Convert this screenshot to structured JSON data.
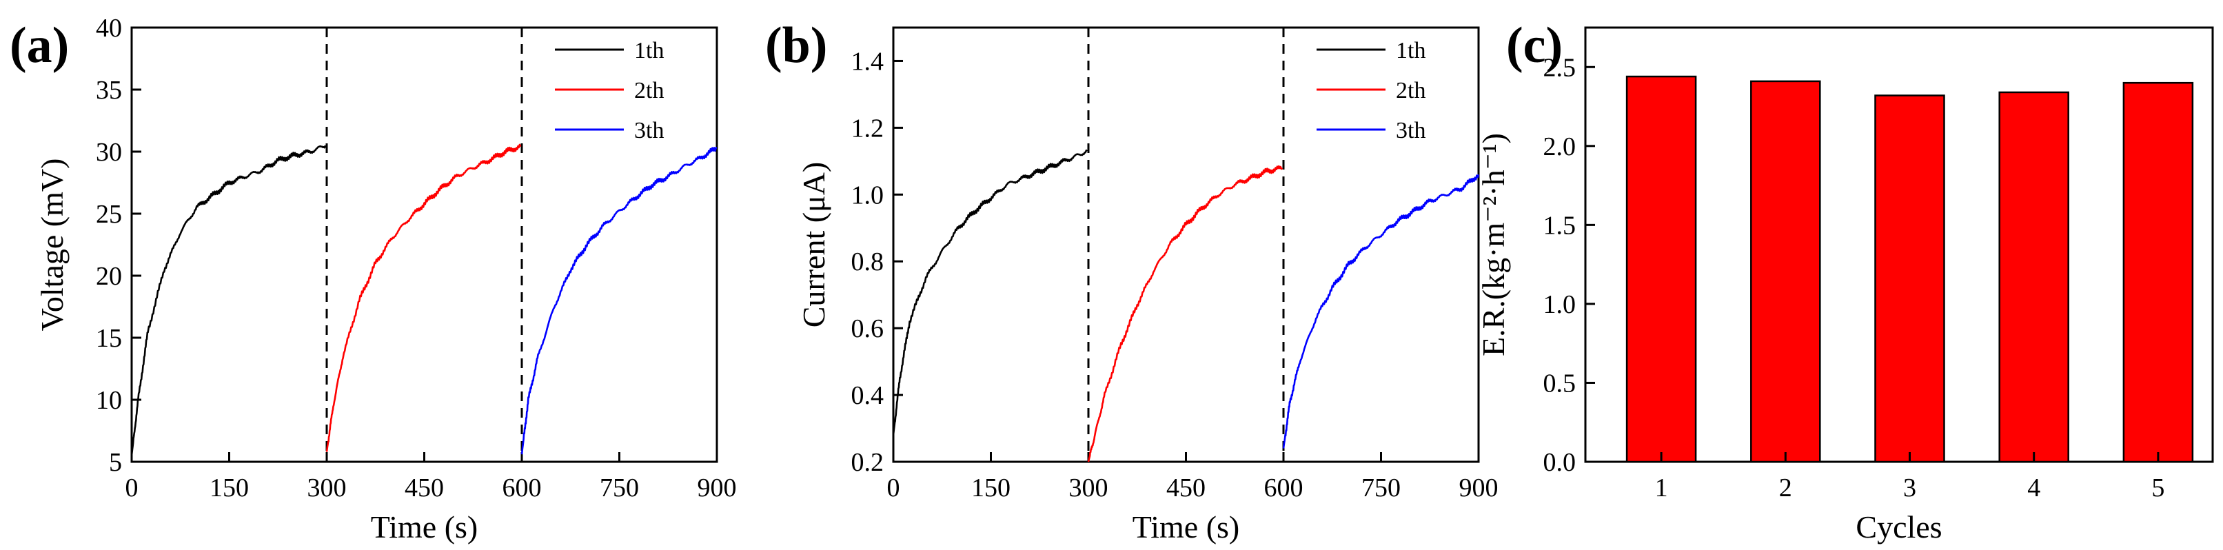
{
  "figure": {
    "panel_labels": [
      "(a)",
      "(b)",
      "(c)"
    ]
  },
  "chart_data": [
    {
      "panel": "(a)",
      "type": "line",
      "title": "",
      "xlabel": "Time (s)",
      "ylabel": "Voltage (mV)",
      "xlim": [
        0,
        900
      ],
      "ylim": [
        5,
        40
      ],
      "xticks": [
        0,
        150,
        300,
        450,
        600,
        750,
        900
      ],
      "yticks": [
        5,
        10,
        15,
        20,
        25,
        30,
        35,
        40
      ],
      "grid": false,
      "legend_position": "top-right",
      "dividers": [
        300,
        600
      ],
      "series": [
        {
          "name": "1th",
          "color": "#000000",
          "x": [
            0,
            10,
            25,
            50,
            75,
            100,
            125,
            150,
            175,
            200,
            225,
            250,
            275,
            298
          ],
          "y": [
            5.5,
            10,
            15.5,
            20.5,
            23.5,
            25.5,
            26.5,
            27.5,
            28,
            28.5,
            29.3,
            29.7,
            30,
            30.5
          ]
        },
        {
          "name": "2th",
          "color": "#ff0000",
          "x": [
            300,
            310,
            325,
            350,
            375,
            400,
            425,
            450,
            475,
            500,
            525,
            550,
            575,
            598
          ],
          "y": [
            5.8,
            9.5,
            13.5,
            18,
            21,
            23,
            24.5,
            25.8,
            27,
            28,
            28.7,
            29.3,
            30,
            30.4
          ]
        },
        {
          "name": "3th",
          "color": "#0000ff",
          "x": [
            600,
            610,
            625,
            650,
            675,
            700,
            725,
            750,
            775,
            800,
            825,
            850,
            875,
            900
          ],
          "y": [
            5.6,
            10,
            13.5,
            17.5,
            20.5,
            22.5,
            24,
            25.2,
            26.3,
            27.3,
            28,
            28.8,
            29.5,
            30.3
          ]
        }
      ]
    },
    {
      "panel": "(b)",
      "type": "line",
      "title": "",
      "xlabel": "Time (s)",
      "ylabel": "Current (μA)",
      "xlim": [
        0,
        900
      ],
      "ylim": [
        0.2,
        1.5
      ],
      "xticks": [
        0,
        150,
        300,
        450,
        600,
        750,
        900
      ],
      "yticks": [
        "0.2",
        "0.4",
        "0.6",
        "0.8",
        "1.0",
        "1.2",
        "1.4"
      ],
      "grid": false,
      "legend_position": "top-right",
      "dividers": [
        300,
        600
      ],
      "series": [
        {
          "name": "1th",
          "color": "#000000",
          "x": [
            0,
            10,
            25,
            50,
            75,
            100,
            125,
            150,
            175,
            200,
            225,
            250,
            275,
            298
          ],
          "y": [
            0.28,
            0.45,
            0.62,
            0.75,
            0.83,
            0.9,
            0.95,
            0.99,
            1.03,
            1.05,
            1.07,
            1.09,
            1.11,
            1.13
          ]
        },
        {
          "name": "2th",
          "color": "#ff0000",
          "x": [
            300,
            310,
            325,
            350,
            375,
            400,
            425,
            450,
            475,
            500,
            525,
            550,
            575,
            598
          ],
          "y": [
            0.2,
            0.28,
            0.4,
            0.55,
            0.67,
            0.77,
            0.85,
            0.91,
            0.96,
            1.0,
            1.03,
            1.05,
            1.07,
            1.08
          ]
        },
        {
          "name": "3th",
          "color": "#0000ff",
          "x": [
            600,
            610,
            625,
            650,
            675,
            700,
            725,
            750,
            775,
            800,
            825,
            850,
            875,
            900
          ],
          "y": [
            0.24,
            0.38,
            0.5,
            0.63,
            0.72,
            0.79,
            0.84,
            0.88,
            0.92,
            0.95,
            0.98,
            1.0,
            1.02,
            1.06
          ]
        }
      ]
    },
    {
      "panel": "(c)",
      "type": "bar",
      "title": "",
      "xlabel": "Cycles",
      "ylabel": "E.R.(kg·m⁻²·h⁻¹)",
      "categories": [
        "1",
        "2",
        "3",
        "4",
        "5"
      ],
      "values": [
        2.44,
        2.41,
        2.32,
        2.34,
        2.4
      ],
      "ylim": [
        0,
        2.75
      ],
      "yticks": [
        "0.0",
        "0.5",
        "1.0",
        "1.5",
        "2.0",
        "2.5"
      ],
      "bar_color": "#ff0000",
      "grid": false
    }
  ]
}
